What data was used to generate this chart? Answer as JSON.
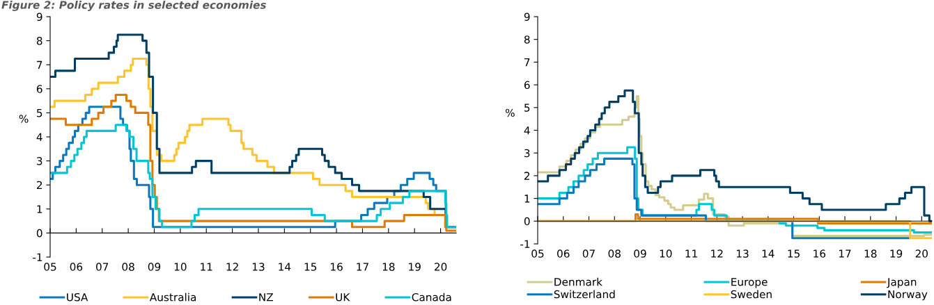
{
  "chart_data": [
    {
      "type": "step",
      "title": "Figure 2: Policy rates in selected economies",
      "ylabel": "%",
      "xlim": [
        2005,
        2020.6
      ],
      "ylim": [
        -1,
        9
      ],
      "xticks": [
        {
          "value": 2005,
          "label": "05"
        },
        {
          "value": 2006,
          "label": "06"
        },
        {
          "value": 2007,
          "label": "07"
        },
        {
          "value": 2008,
          "label": "08"
        },
        {
          "value": 2009,
          "label": "09"
        },
        {
          "value": 2010,
          "label": "10"
        },
        {
          "value": 2011,
          "label": "11"
        },
        {
          "value": 2012,
          "label": "12"
        },
        {
          "value": 2013,
          "label": "13"
        },
        {
          "value": 2014,
          "label": "14"
        },
        {
          "value": 2015,
          "label": "15"
        },
        {
          "value": 2016,
          "label": "16"
        },
        {
          "value": 2017,
          "label": "17"
        },
        {
          "value": 2018,
          "label": "18"
        },
        {
          "value": 2019,
          "label": "19"
        },
        {
          "value": 2020,
          "label": "20"
        }
      ],
      "yticks": [
        -1,
        0,
        1,
        2,
        3,
        4,
        5,
        6,
        7,
        8,
        9
      ],
      "legend": "bottom",
      "series": [
        {
          "name": "USA",
          "color": "#0a7abf",
          "x": [
            2005,
            2005.1,
            2005.2,
            2005.37,
            2005.5,
            2005.62,
            2005.72,
            2005.87,
            2005.95,
            2006.08,
            2006.24,
            2006.37,
            2006.5,
            2007.7,
            2007.8,
            2007.95,
            2008.05,
            2008.1,
            2008.22,
            2008.33,
            2008.8,
            2008.85,
            2008.95,
            2015.95,
            2016.95,
            2017.2,
            2017.45,
            2017.95,
            2018.22,
            2018.47,
            2018.72,
            2018.97,
            2019.58,
            2019.72,
            2019.83,
            2020.2,
            2020.6
          ],
          "values": [
            2.25,
            2.5,
            2.75,
            3.0,
            3.25,
            3.5,
            3.75,
            4.0,
            4.25,
            4.5,
            4.75,
            5.0,
            5.25,
            4.75,
            4.5,
            4.25,
            3.5,
            3.0,
            2.25,
            2.0,
            1.5,
            1.0,
            0.25,
            0.5,
            0.75,
            1.0,
            1.25,
            1.5,
            1.75,
            2.0,
            2.25,
            2.5,
            2.25,
            2.0,
            1.75,
            0.25,
            0.25
          ]
        },
        {
          "name": "Australia",
          "color": "#ffc42e",
          "x": [
            2005,
            2005.17,
            2006.35,
            2006.6,
            2006.85,
            2007.6,
            2007.85,
            2008.1,
            2008.18,
            2008.7,
            2008.78,
            2008.85,
            2008.93,
            2009.1,
            2009.27,
            2009.77,
            2009.85,
            2009.93,
            2010.18,
            2010.27,
            2010.35,
            2010.85,
            2011.85,
            2011.93,
            2012.35,
            2012.43,
            2012.77,
            2012.93,
            2013.35,
            2013.6,
            2015.1,
            2015.35,
            2016.35,
            2016.6,
            2019.43,
            2019.52,
            2019.77,
            2020.2,
            2020.22,
            2020.6
          ],
          "values": [
            5.25,
            5.5,
            5.75,
            6.0,
            6.25,
            6.5,
            6.75,
            7.0,
            7.25,
            7.0,
            6.0,
            5.25,
            4.25,
            3.25,
            3.0,
            3.25,
            3.5,
            3.75,
            4.0,
            4.25,
            4.5,
            4.75,
            4.5,
            4.25,
            3.75,
            3.5,
            3.25,
            3.0,
            2.75,
            2.5,
            2.25,
            2.0,
            1.75,
            1.5,
            1.25,
            1.0,
            0.75,
            0.5,
            0.25,
            0.25
          ]
        },
        {
          "name": "NZ",
          "color": "#003f63",
          "x": [
            2005,
            2005.2,
            2005.95,
            2007.25,
            2007.45,
            2007.55,
            2007.6,
            2008.55,
            2008.7,
            2008.8,
            2008.95,
            2009.1,
            2009.2,
            2010.45,
            2010.6,
            2011.2,
            2014.2,
            2014.3,
            2014.45,
            2014.55,
            2015.45,
            2015.55,
            2015.7,
            2015.95,
            2016.2,
            2016.6,
            2016.87,
            2019.35,
            2019.6,
            2020.2,
            2020.6
          ],
          "values": [
            6.5,
            6.75,
            7.25,
            7.5,
            7.75,
            8.0,
            8.25,
            8.0,
            7.5,
            6.5,
            5.0,
            3.5,
            2.5,
            2.75,
            3.0,
            2.5,
            2.75,
            3.0,
            3.25,
            3.5,
            3.25,
            3.0,
            2.75,
            2.5,
            2.25,
            2.0,
            1.75,
            1.5,
            1.0,
            0.25,
            0.25
          ]
        },
        {
          "name": "UK",
          "color": "#e07b00",
          "x": [
            2005,
            2005.6,
            2006.6,
            2006.85,
            2007.05,
            2007.35,
            2007.52,
            2007.93,
            2008.1,
            2008.27,
            2008.77,
            2008.85,
            2008.93,
            2009.02,
            2009.1,
            2009.18,
            2016.6,
            2017.85,
            2018.6,
            2020.18,
            2020.22,
            2020.6
          ],
          "values": [
            4.75,
            4.5,
            4.75,
            5.0,
            5.25,
            5.5,
            5.75,
            5.5,
            5.25,
            5.0,
            4.5,
            3.0,
            2.0,
            1.5,
            1.0,
            0.5,
            0.25,
            0.5,
            0.75,
            0.25,
            0.1,
            0.1
          ]
        },
        {
          "name": "Canada",
          "color": "#00c4d8",
          "x": [
            2005,
            2005.65,
            2005.8,
            2005.93,
            2006.05,
            2006.2,
            2006.3,
            2006.4,
            2007.52,
            2007.93,
            2008.05,
            2008.2,
            2008.32,
            2008.77,
            2008.83,
            2008.93,
            2009.05,
            2009.2,
            2009.3,
            2010.43,
            2010.55,
            2010.7,
            2015.05,
            2015.55,
            2017.55,
            2017.7,
            2018.05,
            2018.55,
            2018.8,
            2020.18,
            2020.22,
            2020.25,
            2020.6
          ],
          "values": [
            2.5,
            2.75,
            3.0,
            3.25,
            3.5,
            3.75,
            4.0,
            4.25,
            4.5,
            4.25,
            4.0,
            3.5,
            3.0,
            2.5,
            2.25,
            1.5,
            1.0,
            0.5,
            0.25,
            0.5,
            0.75,
            1.0,
            0.75,
            0.5,
            0.75,
            1.0,
            1.25,
            1.5,
            1.75,
            1.25,
            0.75,
            0.25,
            0.25
          ]
        }
      ]
    },
    {
      "type": "step",
      "ylabel": "%",
      "xlim": [
        2005,
        2020.4
      ],
      "ylim": [
        -1,
        9
      ],
      "xticks": [
        {
          "value": 2005,
          "label": "05"
        },
        {
          "value": 2006,
          "label": "06"
        },
        {
          "value": 2007,
          "label": "07"
        },
        {
          "value": 2008,
          "label": "08"
        },
        {
          "value": 2009,
          "label": "09"
        },
        {
          "value": 2010,
          "label": "10"
        },
        {
          "value": 2011,
          "label": "11"
        },
        {
          "value": 2012,
          "label": "12"
        },
        {
          "value": 2013,
          "label": "13"
        },
        {
          "value": 2014,
          "label": "14"
        },
        {
          "value": 2015,
          "label": "15"
        },
        {
          "value": 2016,
          "label": "16"
        },
        {
          "value": 2017,
          "label": "17"
        },
        {
          "value": 2018,
          "label": "18"
        },
        {
          "value": 2019,
          "label": "19"
        },
        {
          "value": 2020,
          "label": "20"
        }
      ],
      "yticks": [
        -1,
        0,
        1,
        2,
        3,
        4,
        5,
        6,
        7,
        8,
        9
      ],
      "legend": "bottom",
      "series": [
        {
          "name": "Denmark",
          "color": "#d4cc8f",
          "x": [
            2005,
            2005.85,
            2006.12,
            2006.3,
            2006.48,
            2006.67,
            2006.85,
            2007.05,
            2007.25,
            2007.43,
            2008.3,
            2008.55,
            2008.78,
            2008.87,
            2008.93,
            2008.98,
            2009.05,
            2009.1,
            2009.22,
            2009.32,
            2009.45,
            2009.6,
            2009.75,
            2009.95,
            2010.1,
            2010.2,
            2010.35,
            2010.68,
            2011.3,
            2011.5,
            2011.65,
            2011.85,
            2012.3,
            2012.46,
            2013.05,
            2014.4,
            2014.95,
            2016.0,
            2020.1,
            2020.4
          ],
          "values": [
            2.15,
            2.4,
            2.65,
            2.9,
            3.15,
            3.4,
            3.65,
            3.9,
            4.15,
            4.25,
            4.45,
            4.6,
            5.0,
            5.5,
            4.5,
            3.75,
            3.0,
            2.5,
            1.75,
            1.55,
            1.4,
            1.15,
            1.05,
            0.9,
            0.75,
            0.6,
            0.5,
            0.7,
            0.95,
            1.2,
            1.0,
            0.3,
            0.2,
            -0.2,
            -0.1,
            0.0,
            -0.65,
            -0.65,
            -0.6,
            -0.6
          ]
        },
        {
          "name": "Europe",
          "color": "#00c4d8",
          "x": [
            2005,
            2005.85,
            2006.2,
            2006.4,
            2006.6,
            2006.8,
            2006.95,
            2007.15,
            2007.35,
            2008.5,
            2008.8,
            2008.87,
            2008.93,
            2009.1,
            2011.2,
            2011.3,
            2011.8,
            2011.9,
            2012.38,
            2014.45,
            2014.7,
            2015.93,
            2016.2,
            2019.7,
            2020.4
          ],
          "values": [
            1.0,
            1.25,
            1.5,
            1.75,
            2.0,
            2.25,
            2.5,
            2.75,
            3.0,
            3.25,
            2.75,
            1.0,
            0.5,
            0.25,
            0.5,
            0.75,
            0.5,
            0.25,
            0.0,
            -0.1,
            -0.2,
            -0.3,
            -0.4,
            -0.5,
            -0.5
          ]
        },
        {
          "name": "Japan",
          "color": "#e07b00",
          "x": [
            2005,
            2008.82,
            2008.92,
            2015.95,
            2020.4
          ],
          "values": [
            0.0,
            0.3,
            0.1,
            -0.1,
            -0.1
          ]
        },
        {
          "name": "Switzerland",
          "color": "#0a7abf",
          "x": [
            2005,
            2005.85,
            2006.15,
            2006.4,
            2006.6,
            2006.85,
            2007.05,
            2007.3,
            2007.6,
            2008.7,
            2008.78,
            2008.87,
            2009.05,
            2011.57,
            2014.95,
            2019.5
          ],
          "values": [
            0.75,
            1.0,
            1.25,
            1.5,
            1.75,
            2.0,
            2.25,
            2.5,
            2.75,
            2.5,
            1.0,
            0.5,
            0.25,
            0.0,
            -0.75,
            -0.75
          ]
        },
        {
          "name": "Sweden",
          "color": "#ffc42e",
          "x": [
            2005,
            2019.55,
            2020.4
          ],
          "values": [
            0.0,
            -0.75,
            -0.75
          ]
        },
        {
          "name": "Norway",
          "color": "#003f63",
          "x": [
            2005,
            2005.4,
            2005.85,
            2006.1,
            2006.3,
            2006.45,
            2006.62,
            2006.78,
            2006.95,
            2007.05,
            2007.25,
            2007.4,
            2007.5,
            2007.62,
            2007.8,
            2008.15,
            2008.4,
            2008.72,
            2008.8,
            2008.95,
            2009.05,
            2009.1,
            2009.2,
            2009.3,
            2009.7,
            2009.8,
            2010.25,
            2011.35,
            2011.9,
            2011.97,
            2012.08,
            2014.86,
            2015.35,
            2015.62,
            2016.1,
            2018.6,
            2019.13,
            2019.35,
            2019.6,
            2020.1,
            2020.3,
            2020.4
          ],
          "values": [
            1.75,
            2.0,
            2.25,
            2.5,
            2.75,
            3.0,
            3.25,
            3.5,
            3.75,
            4.0,
            4.25,
            4.5,
            4.75,
            5.0,
            5.25,
            5.5,
            5.75,
            5.25,
            4.75,
            3.0,
            2.5,
            2.0,
            1.5,
            1.25,
            1.5,
            1.75,
            2.0,
            2.25,
            2.0,
            1.75,
            1.5,
            1.25,
            1.0,
            0.75,
            0.5,
            0.75,
            1.0,
            1.25,
            1.5,
            0.25,
            0.0,
            0.0
          ]
        }
      ]
    }
  ]
}
